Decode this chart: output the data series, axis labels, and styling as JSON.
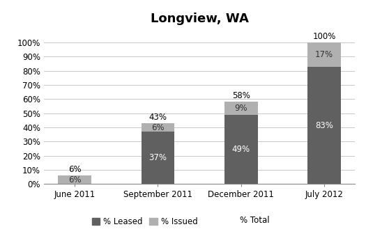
{
  "title": "Longview, WA",
  "categories": [
    "June 2011",
    "September 2011",
    "December 2011",
    "July 2012"
  ],
  "leased": [
    0,
    37,
    49,
    83
  ],
  "issued": [
    6,
    6,
    9,
    17
  ],
  "color_leased": "#606060",
  "color_issued": "#b0b0b0",
  "ylim": [
    0,
    110
  ],
  "yticks": [
    0,
    10,
    20,
    30,
    40,
    50,
    60,
    70,
    80,
    90,
    100
  ],
  "ytick_labels": [
    "0%",
    "10%",
    "20%",
    "30%",
    "40%",
    "50%",
    "60%",
    "70%",
    "80%",
    "90%",
    "100%"
  ],
  "total_labels": [
    "6%",
    "43%",
    "58%",
    "100%"
  ],
  "leased_labels": [
    "",
    "37%",
    "49%",
    "83%"
  ],
  "issued_labels": [
    "6%",
    "6%",
    "9%",
    "17%"
  ],
  "legend_leased": "% Leased",
  "legend_issued": "% Issued",
  "legend_total": "% Total",
  "bar_width": 0.4,
  "figsize": [
    5.25,
    3.39
  ],
  "dpi": 100
}
